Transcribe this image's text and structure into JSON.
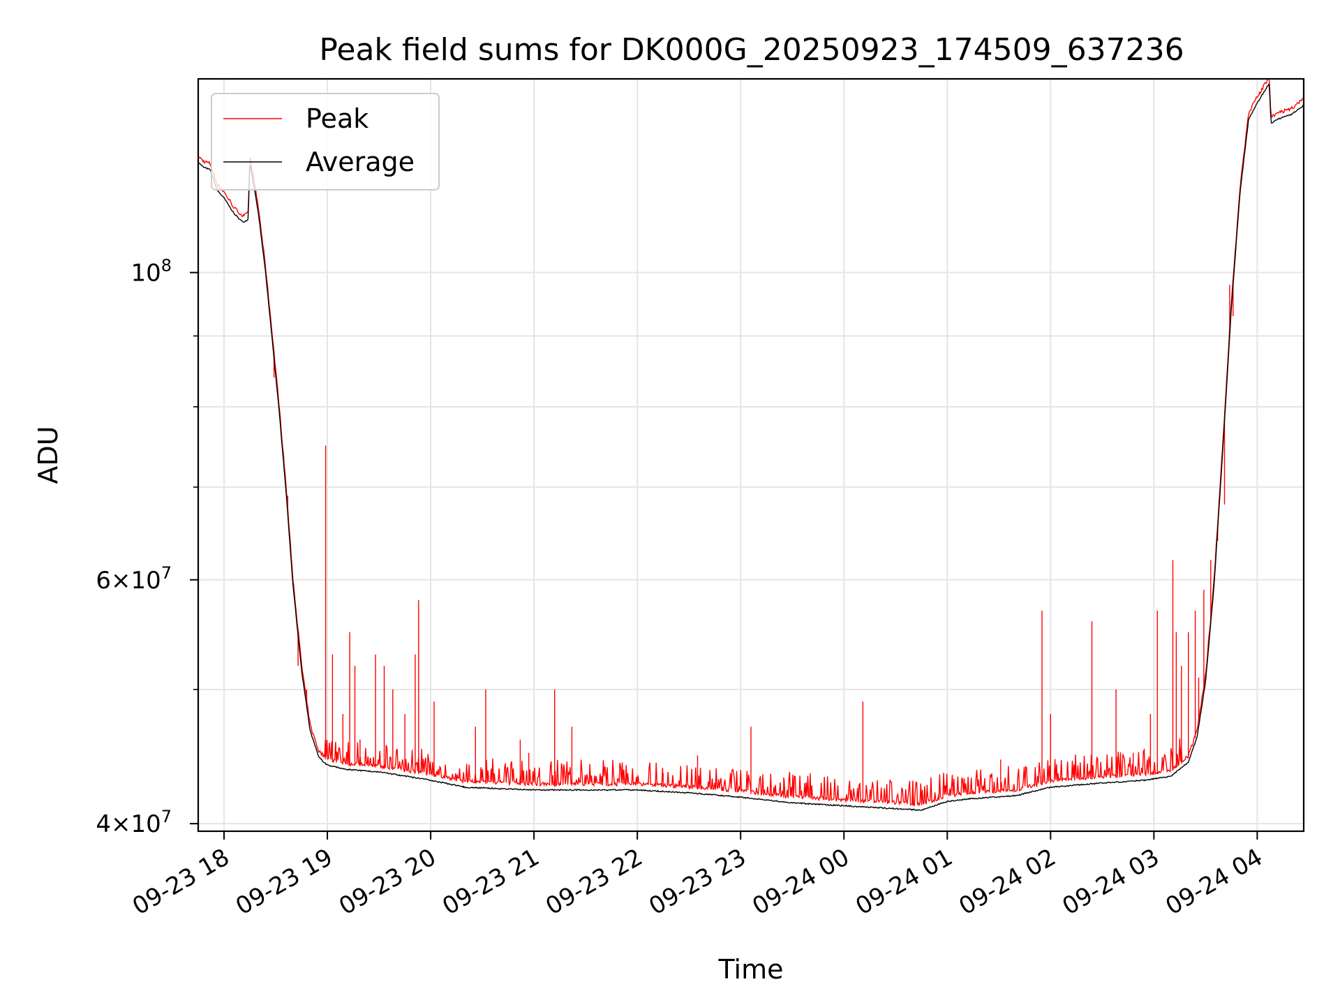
{
  "chart_data": {
    "type": "line",
    "title": "Peak field sums for DK000G_20250923_174509_637236",
    "xlabel": "Time",
    "ylabel": "ADU",
    "y_scale": "log",
    "ylim": [
      39500000,
      138000000
    ],
    "xlim": [
      "2025-09-23 17:45",
      "2025-09-24 04:27"
    ],
    "grid": true,
    "legend": {
      "placement": "top-left"
    },
    "x_ticks": [
      {
        "t": "2025-09-23 18:00",
        "label": "09-23 18"
      },
      {
        "t": "2025-09-23 19:00",
        "label": "09-23 19"
      },
      {
        "t": "2025-09-23 20:00",
        "label": "09-23 20"
      },
      {
        "t": "2025-09-23 21:00",
        "label": "09-23 21"
      },
      {
        "t": "2025-09-23 22:00",
        "label": "09-23 22"
      },
      {
        "t": "2025-09-23 23:00",
        "label": "09-23 23"
      },
      {
        "t": "2025-09-24 00:00",
        "label": "09-24 00"
      },
      {
        "t": "2025-09-24 01:00",
        "label": "09-24 01"
      },
      {
        "t": "2025-09-24 02:00",
        "label": "09-24 02"
      },
      {
        "t": "2025-09-24 03:00",
        "label": "09-24 03"
      },
      {
        "t": "2025-09-24 04:00",
        "label": "09-24 04"
      }
    ],
    "y_ticks": [
      {
        "v": 40000000,
        "base": "4",
        "exp": "7"
      },
      {
        "v": 60000000,
        "base": "6",
        "exp": "7"
      },
      {
        "v": 100000000,
        "base": "",
        "exp": "8"
      }
    ],
    "y_minor_ticks": [
      50000000,
      70000000,
      80000000,
      90000000
    ],
    "series": [
      {
        "name": "Peak",
        "color": "#ff0000",
        "baseline": [
          [
            "2025-09-23 17:45",
            121000000
          ],
          [
            "2025-09-23 17:48",
            120000000
          ],
          [
            "2025-09-23 17:52",
            119500000
          ],
          [
            "2025-09-23 17:56",
            115500000
          ],
          [
            "2025-09-23 18:00",
            114000000
          ],
          [
            "2025-09-23 18:06",
            111000000
          ],
          [
            "2025-09-23 18:11",
            109500000
          ],
          [
            "2025-09-23 18:14",
            110000000
          ],
          [
            "2025-09-23 18:15",
            121000000
          ],
          [
            "2025-09-23 18:16",
            119000000
          ],
          [
            "2025-09-23 18:20",
            111000000
          ],
          [
            "2025-09-23 18:24",
            101000000
          ],
          [
            "2025-09-23 18:28",
            90000000
          ],
          [
            "2025-09-23 18:32",
            80000000
          ],
          [
            "2025-09-23 18:36",
            70000000
          ],
          [
            "2025-09-23 18:40",
            60000000
          ],
          [
            "2025-09-23 18:45",
            52000000
          ],
          [
            "2025-09-23 18:50",
            47000000
          ],
          [
            "2025-09-23 18:55",
            45000000
          ],
          [
            "2025-09-23 19:00",
            44400000
          ],
          [
            "2025-09-23 19:10",
            44100000
          ],
          [
            "2025-09-23 19:30",
            43900000
          ],
          [
            "2025-09-23 20:00",
            43300000
          ],
          [
            "2025-09-23 20:20",
            42800000
          ],
          [
            "2025-09-23 21:00",
            42600000
          ],
          [
            "2025-09-23 22:00",
            42600000
          ],
          [
            "2025-09-23 22:30",
            42400000
          ],
          [
            "2025-09-23 23:00",
            42100000
          ],
          [
            "2025-09-23 23:30",
            41700000
          ],
          [
            "2025-09-24 00:00",
            41500000
          ],
          [
            "2025-09-24 00:30",
            41300000
          ],
          [
            "2025-09-24 00:45",
            41200000
          ],
          [
            "2025-09-24 01:00",
            41800000
          ],
          [
            "2025-09-24 01:15",
            42000000
          ],
          [
            "2025-09-24 01:40",
            42200000
          ],
          [
            "2025-09-24 02:00",
            42800000
          ],
          [
            "2025-09-24 02:30",
            43100000
          ],
          [
            "2025-09-24 02:55",
            43300000
          ],
          [
            "2025-09-24 03:10",
            43600000
          ],
          [
            "2025-09-24 03:20",
            44600000
          ],
          [
            "2025-09-24 03:25",
            46500000
          ],
          [
            "2025-09-24 03:30",
            51000000
          ],
          [
            "2025-09-24 03:35",
            60000000
          ],
          [
            "2025-09-24 03:40",
            75000000
          ],
          [
            "2025-09-24 03:45",
            95000000
          ],
          [
            "2025-09-24 03:50",
            115000000
          ],
          [
            "2025-09-24 03:55",
            130000000
          ],
          [
            "2025-09-24 04:00",
            133500000
          ],
          [
            "2025-09-24 04:07",
            138000000
          ],
          [
            "2025-09-24 04:08",
            129000000
          ],
          [
            "2025-09-24 04:12",
            130000000
          ],
          [
            "2025-09-24 04:20",
            131000000
          ],
          [
            "2025-09-24 04:27",
            133000000
          ]
        ],
        "spikes": [
          [
            "2025-09-23 18:29",
            84000000
          ],
          [
            "2025-09-23 18:37",
            69000000
          ],
          [
            "2025-09-23 18:43",
            52000000
          ],
          [
            "2025-09-23 18:48",
            50000000
          ],
          [
            "2025-09-23 18:59",
            75000000
          ],
          [
            "2025-09-23 19:03",
            53000000
          ],
          [
            "2025-09-23 19:09",
            48000000
          ],
          [
            "2025-09-23 19:13",
            55000000
          ],
          [
            "2025-09-23 19:16",
            52000000
          ],
          [
            "2025-09-23 19:19",
            46000000
          ],
          [
            "2025-09-23 19:28",
            53000000
          ],
          [
            "2025-09-23 19:33",
            52000000
          ],
          [
            "2025-09-23 19:38",
            50000000
          ],
          [
            "2025-09-23 19:45",
            48000000
          ],
          [
            "2025-09-23 19:51",
            53000000
          ],
          [
            "2025-09-23 19:53",
            58000000
          ],
          [
            "2025-09-23 20:02",
            49000000
          ],
          [
            "2025-09-23 20:26",
            47000000
          ],
          [
            "2025-09-23 20:32",
            50000000
          ],
          [
            "2025-09-23 20:52",
            46000000
          ],
          [
            "2025-09-23 20:57",
            45000000
          ],
          [
            "2025-09-23 21:12",
            50000000
          ],
          [
            "2025-09-23 21:22",
            47000000
          ],
          [
            "2025-09-23 21:42",
            43500000
          ],
          [
            "2025-09-23 22:15",
            43500000
          ],
          [
            "2025-09-23 22:35",
            44800000
          ],
          [
            "2025-09-23 23:06",
            47000000
          ],
          [
            "2025-09-23 23:25",
            43200000
          ],
          [
            "2025-09-24 00:11",
            49000000
          ],
          [
            "2025-09-24 00:40",
            42300000
          ],
          [
            "2025-09-24 00:55",
            42000000
          ],
          [
            "2025-09-24 01:31",
            44500000
          ],
          [
            "2025-09-24 01:55",
            57000000
          ],
          [
            "2025-09-24 02:00",
            48000000
          ],
          [
            "2025-09-24 02:24",
            56000000
          ],
          [
            "2025-09-24 02:38",
            50000000
          ],
          [
            "2025-09-24 02:48",
            45000000
          ],
          [
            "2025-09-24 02:58",
            48000000
          ],
          [
            "2025-09-24 03:02",
            57000000
          ],
          [
            "2025-09-24 03:11",
            62000000
          ],
          [
            "2025-09-24 03:13",
            55000000
          ],
          [
            "2025-09-24 03:16",
            52000000
          ],
          [
            "2025-09-24 03:20",
            55000000
          ],
          [
            "2025-09-24 03:24",
            57000000
          ],
          [
            "2025-09-24 03:26",
            51000000
          ],
          [
            "2025-09-24 03:29",
            59000000
          ],
          [
            "2025-09-24 03:33",
            62000000
          ],
          [
            "2025-09-24 03:37",
            64000000
          ],
          [
            "2025-09-24 03:41",
            68000000
          ],
          [
            "2025-09-24 03:44",
            98000000
          ],
          [
            "2025-09-24 03:46",
            93000000
          ]
        ]
      },
      {
        "name": "Average",
        "color": "#000000",
        "offset_factor": 0.993
      }
    ]
  }
}
